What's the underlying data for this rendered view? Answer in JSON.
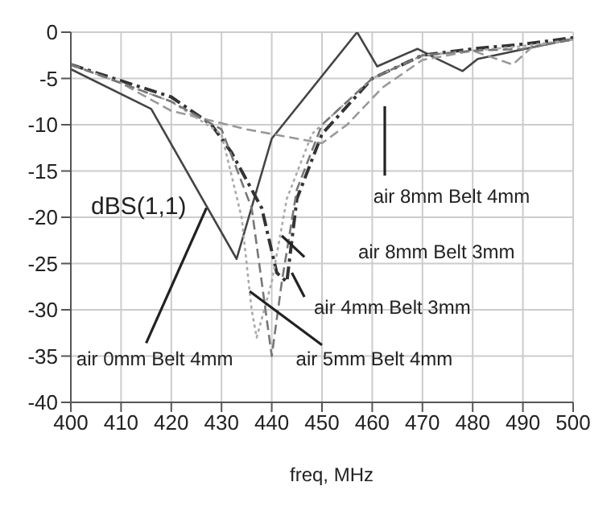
{
  "chart_data": {
    "type": "line",
    "xlabel": "freq, MHz",
    "xlim": [
      400,
      500
    ],
    "xticks": [
      400,
      410,
      420,
      430,
      440,
      450,
      460,
      470,
      480,
      490,
      500
    ],
    "ylim": [
      -40,
      0
    ],
    "yticks": [
      -40,
      -35,
      -30,
      -25,
      -20,
      -15,
      -10,
      -5,
      0
    ],
    "grid": true,
    "marker": "none",
    "series": [
      {
        "color": "#444444",
        "line_style": "solid",
        "x": [
          400,
          416,
          433,
          440,
          457,
          461,
          469,
          473,
          478,
          481,
          500
        ],
        "values": [
          -4,
          -8.3,
          -24.5,
          -11.5,
          0,
          -3.7,
          -1.8,
          -2.9,
          -4.2,
          -2.9,
          -0.7
        ]
      },
      {
        "color": "#333333",
        "line_style": "dashdot",
        "x": [
          400,
          420,
          428,
          432,
          438,
          441,
          443,
          445,
          450,
          460,
          470,
          480,
          490,
          500
        ],
        "values": [
          -3.5,
          -7,
          -10,
          -13,
          -19,
          -26,
          -27,
          -18,
          -11,
          -5,
          -2.5,
          -1.8,
          -1.3,
          -0.6
        ]
      },
      {
        "color": "#999999",
        "line_style": "dashed",
        "x": [
          400,
          410,
          420,
          435,
          450,
          455,
          462,
          470,
          480,
          488,
          492,
          500
        ],
        "values": [
          -3.5,
          -5.5,
          -8.5,
          -10.5,
          -12,
          -10,
          -6,
          -3,
          -2,
          -3.5,
          -1.5,
          -0.8
        ]
      },
      {
        "color": "#aaaaaa",
        "line_style": "dotted",
        "x": [
          400,
          420,
          430,
          434,
          436,
          437,
          440,
          443,
          448,
          460,
          470,
          480,
          490,
          500
        ],
        "values": [
          -3.5,
          -7.5,
          -11,
          -20,
          -30,
          -33,
          -27,
          -18,
          -11,
          -5,
          -2.5,
          -2,
          -1.5,
          -0.8
        ]
      },
      {
        "color": "#777777",
        "line_style": "dashed",
        "x": [
          400,
          420,
          430,
          436,
          440,
          442,
          445,
          450,
          460,
          470,
          480,
          490,
          500
        ],
        "values": [
          -3.5,
          -7.5,
          -10.5,
          -19,
          -35,
          -27,
          -17,
          -10,
          -5,
          -2.5,
          -2,
          -1.8,
          -0.8
        ]
      }
    ],
    "annotations": [
      "dBS(1,1)",
      "air 8mm Belt 4mm",
      "air 8mm Belt 3mm",
      "air 4mm Belt 3mm",
      {
        "text": "air 0mm Belt 4mm",
        "x": 427,
        "y": -19
      },
      {
        "text": "air 5mm Belt 4mm",
        "x": 435.6,
        "y": -28
      }
    ]
  }
}
